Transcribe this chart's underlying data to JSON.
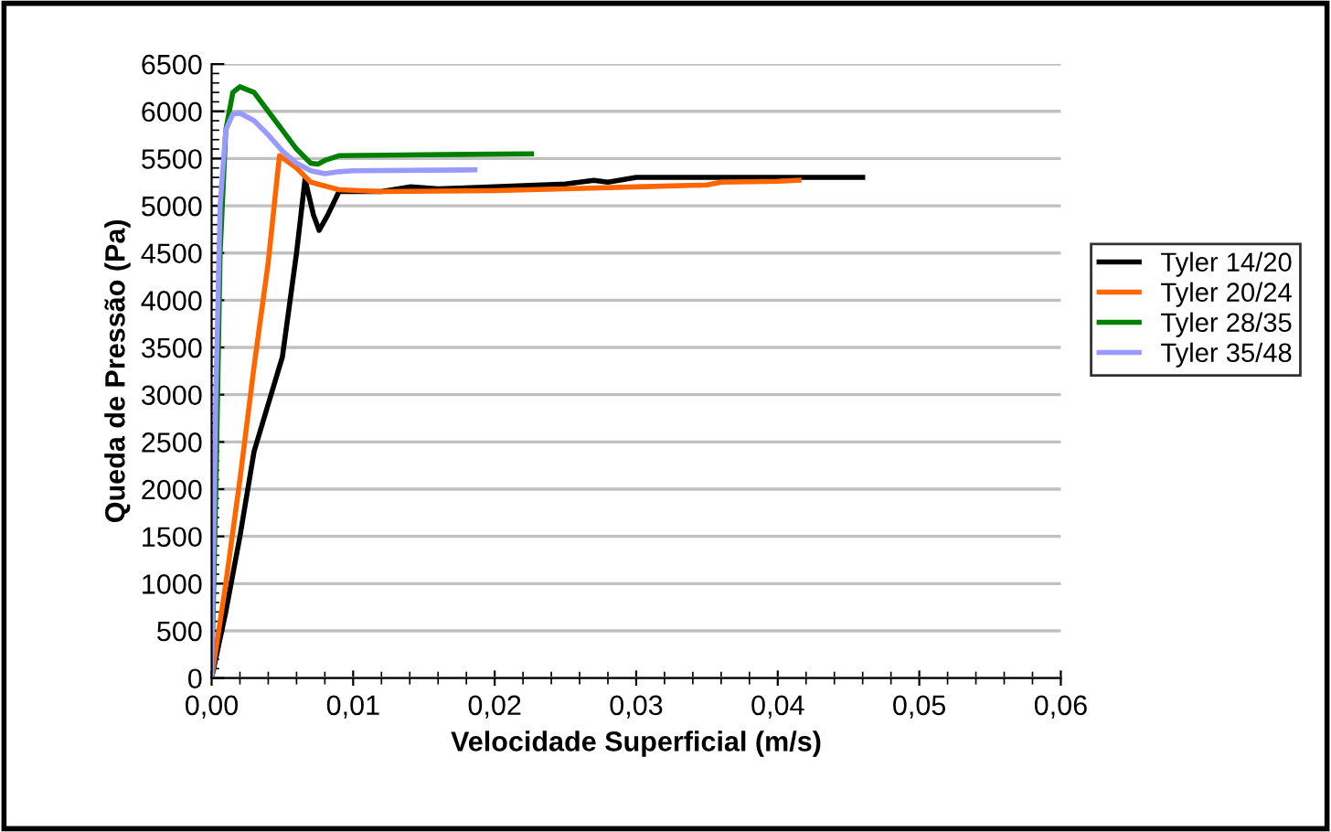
{
  "chart_data": {
    "type": "line",
    "xlabel": "Velocidade Superficial (m/s)",
    "ylabel": "Queda de Pressão (Pa)",
    "xlim": [
      0,
      0.06
    ],
    "xticks": [
      {
        "value": 0,
        "label": "0,00"
      },
      {
        "value": 0.01,
        "label": "0,01"
      },
      {
        "value": 0.02,
        "label": "0,02"
      },
      {
        "value": 0.03,
        "label": "0,03"
      },
      {
        "value": 0.04,
        "label": "0,04"
      },
      {
        "value": 0.05,
        "label": "0,05"
      },
      {
        "value": 0.06,
        "label": "0,06"
      }
    ],
    "ylim": [
      0,
      6500
    ],
    "yticks": [
      0,
      500,
      1000,
      1500,
      2000,
      2500,
      3000,
      3500,
      4000,
      4500,
      5000,
      5500,
      6000,
      6500
    ],
    "grid": "y",
    "legend": "right",
    "marker": "none",
    "line_style": "solid",
    "series": [
      {
        "name": "Tyler 14/20",
        "color": "#000000",
        "x": [
          0,
          0.001,
          0.002,
          0.003,
          0.004,
          0.005,
          0.006,
          0.0066,
          0.0072,
          0.0076,
          0.0082,
          0.009,
          0.012,
          0.014,
          0.016,
          0.02,
          0.025,
          0.027,
          0.028,
          0.03,
          0.035,
          0.04,
          0.046
        ],
        "values": [
          0,
          700,
          1500,
          2400,
          2900,
          3400,
          4500,
          5280,
          4900,
          4740,
          4900,
          5150,
          5150,
          5200,
          5180,
          5200,
          5230,
          5270,
          5250,
          5300,
          5300,
          5300,
          5300
        ]
      },
      {
        "name": "Tyler 20/24",
        "color": "#ff6600",
        "x": [
          0,
          0.001,
          0.002,
          0.003,
          0.004,
          0.0047,
          0.0048,
          0.006,
          0.007,
          0.009,
          0.012,
          0.02,
          0.025,
          0.03,
          0.035,
          0.036,
          0.04,
          0.0415
        ],
        "values": [
          0,
          1000,
          2100,
          3300,
          4400,
          5400,
          5530,
          5400,
          5250,
          5170,
          5150,
          5160,
          5180,
          5200,
          5220,
          5250,
          5260,
          5270
        ]
      },
      {
        "name": "Tyler 28/35",
        "color": "#008000",
        "x": [
          0,
          0.0003,
          0.0006,
          0.001,
          0.0015,
          0.002,
          0.003,
          0.004,
          0.005,
          0.006,
          0.007,
          0.0075,
          0.008,
          0.009,
          0.015,
          0.0226
        ],
        "values": [
          0,
          2000,
          4500,
          5800,
          6200,
          6260,
          6200,
          6000,
          5800,
          5600,
          5450,
          5440,
          5480,
          5530,
          5540,
          5550
        ]
      },
      {
        "name": "Tyler 35/48",
        "color": "#9999ff",
        "x": [
          0,
          0.0003,
          0.0006,
          0.001,
          0.0015,
          0.002,
          0.003,
          0.004,
          0.005,
          0.006,
          0.007,
          0.008,
          0.009,
          0.01,
          0.0186
        ],
        "values": [
          0,
          3000,
          5000,
          5800,
          5970,
          5980,
          5900,
          5750,
          5580,
          5450,
          5370,
          5340,
          5360,
          5370,
          5380
        ]
      }
    ]
  }
}
